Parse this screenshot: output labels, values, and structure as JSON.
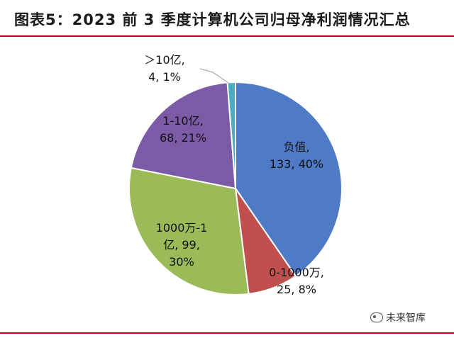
{
  "title": "图表5：2023 前 3 季度计算机公司归母净利润情况汇总",
  "watermark": "未来智库",
  "chart_data": {
    "type": "pie",
    "slices": [
      {
        "name": "负值",
        "count": "133",
        "percent": "40%",
        "value": 133,
        "color": "#4f7ac6"
      },
      {
        "name": "0-1000万",
        "count": "25",
        "percent": "8%",
        "value": 25,
        "color": "#c0504d"
      },
      {
        "name": "1000万-1亿",
        "count": "99",
        "percent": "30%",
        "value": 99,
        "color": "#9bbb59"
      },
      {
        "name": "1-10亿",
        "count": "68",
        "percent": "21%",
        "value": 68,
        "color": "#7b5aa6"
      },
      {
        "name": ">10亿",
        "count": "4",
        "percent": "1%",
        "value": 4,
        "color": "#4bacc6"
      }
    ],
    "labels": [
      {
        "lines": [
          "负值,",
          "133, 40%"
        ]
      },
      {
        "lines": [
          "0-1000万,",
          "25, 8%"
        ]
      },
      {
        "lines": [
          "1000万-1",
          "亿, 99,",
          "30%"
        ]
      },
      {
        "lines": [
          "1-10亿,",
          "68, 21%"
        ]
      },
      {
        "lines": [
          "＞10亿,",
          "4, 1%"
        ]
      }
    ]
  }
}
